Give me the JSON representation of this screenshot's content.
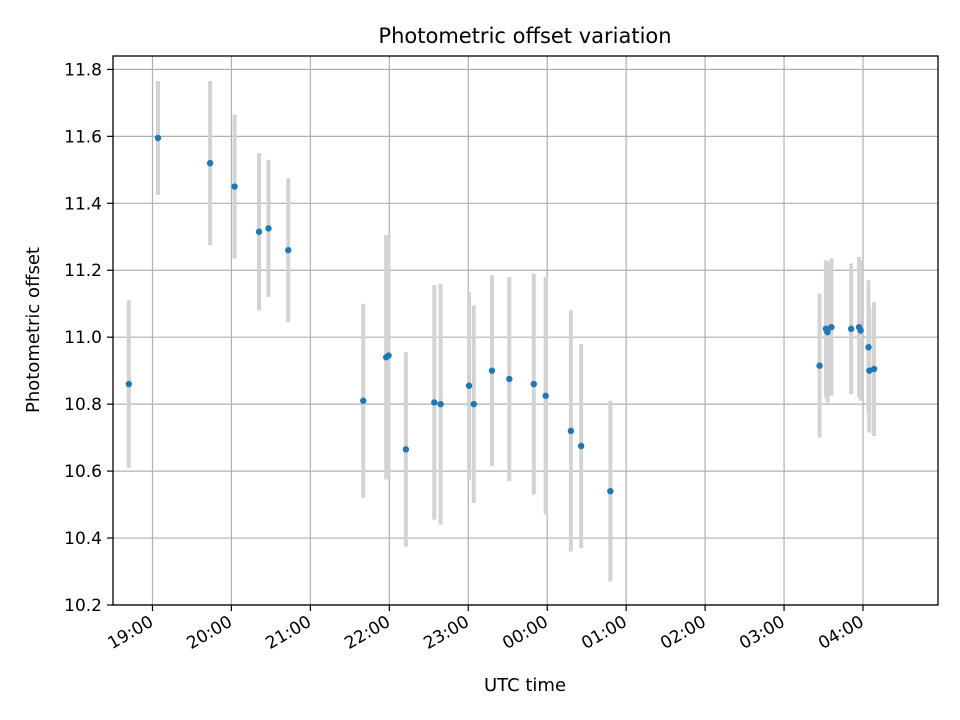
{
  "chart_data": {
    "type": "scatter",
    "title": "Photometric offset variation",
    "xlabel": "UTC time",
    "ylabel": "Photometric offset",
    "x_unit": "UTC hours (times after midnight expressed as 24+)",
    "xlim": [
      18.5,
      28.95
    ],
    "ylim": [
      10.2,
      11.84
    ],
    "x_ticks": [
      {
        "value": 19,
        "label": "19:00"
      },
      {
        "value": 20,
        "label": "20:00"
      },
      {
        "value": 21,
        "label": "21:00"
      },
      {
        "value": 22,
        "label": "22:00"
      },
      {
        "value": 23,
        "label": "23:00"
      },
      {
        "value": 24,
        "label": "00:00"
      },
      {
        "value": 25,
        "label": "01:00"
      },
      {
        "value": 26,
        "label": "02:00"
      },
      {
        "value": 27,
        "label": "03:00"
      },
      {
        "value": 28,
        "label": "04:00"
      }
    ],
    "y_ticks": [
      {
        "value": 10.2,
        "label": "10.2"
      },
      {
        "value": 10.4,
        "label": "10.4"
      },
      {
        "value": 10.6,
        "label": "10.6"
      },
      {
        "value": 10.8,
        "label": "10.8"
      },
      {
        "value": 11.0,
        "label": "11.0"
      },
      {
        "value": 11.2,
        "label": "11.2"
      },
      {
        "value": 11.4,
        "label": "11.4"
      },
      {
        "value": 11.6,
        "label": "11.6"
      },
      {
        "value": 11.8,
        "label": "11.8"
      }
    ],
    "grid": true,
    "colors": {
      "point": "#1f77b4",
      "errorbar": "#d3d3d3",
      "grid": "#b0b0b0"
    },
    "points": [
      {
        "x": 18.7,
        "y": 10.86,
        "yerr": 0.25
      },
      {
        "x": 19.07,
        "y": 11.595,
        "yerr": 0.17
      },
      {
        "x": 19.73,
        "y": 11.52,
        "yerr": 0.245
      },
      {
        "x": 20.04,
        "y": 11.45,
        "yerr": 0.215
      },
      {
        "x": 20.35,
        "y": 11.315,
        "yerr": 0.235
      },
      {
        "x": 20.47,
        "y": 11.325,
        "yerr": 0.205
      },
      {
        "x": 20.72,
        "y": 11.26,
        "yerr": 0.215
      },
      {
        "x": 21.67,
        "y": 10.81,
        "yerr": 0.29
      },
      {
        "x": 21.96,
        "y": 10.94,
        "yerr": 0.365
      },
      {
        "x": 21.99,
        "y": 10.945,
        "yerr": 0.36
      },
      {
        "x": 22.21,
        "y": 10.665,
        "yerr": 0.29
      },
      {
        "x": 22.57,
        "y": 10.805,
        "yerr": 0.35
      },
      {
        "x": 22.65,
        "y": 10.8,
        "yerr": 0.36
      },
      {
        "x": 23.01,
        "y": 10.855,
        "yerr": 0.28
      },
      {
        "x": 23.07,
        "y": 10.8,
        "yerr": 0.295
      },
      {
        "x": 23.3,
        "y": 10.9,
        "yerr": 0.285
      },
      {
        "x": 23.52,
        "y": 10.875,
        "yerr": 0.305
      },
      {
        "x": 23.83,
        "y": 10.86,
        "yerr": 0.33
      },
      {
        "x": 23.98,
        "y": 10.825,
        "yerr": 0.355
      },
      {
        "x": 24.3,
        "y": 10.72,
        "yerr": 0.36
      },
      {
        "x": 24.43,
        "y": 10.675,
        "yerr": 0.305
      },
      {
        "x": 24.8,
        "y": 10.54,
        "yerr": 0.27
      },
      {
        "x": 27.45,
        "y": 10.915,
        "yerr": 0.215
      },
      {
        "x": 27.53,
        "y": 11.025,
        "yerr": 0.205
      },
      {
        "x": 27.55,
        "y": 11.015,
        "yerr": 0.21
      },
      {
        "x": 27.6,
        "y": 11.03,
        "yerr": 0.205
      },
      {
        "x": 27.85,
        "y": 11.025,
        "yerr": 0.195
      },
      {
        "x": 27.95,
        "y": 11.03,
        "yerr": 0.21
      },
      {
        "x": 27.97,
        "y": 11.02,
        "yerr": 0.21
      },
      {
        "x": 28.07,
        "y": 10.97,
        "yerr": 0.2
      },
      {
        "x": 28.08,
        "y": 10.9,
        "yerr": 0.185
      },
      {
        "x": 28.14,
        "y": 10.905,
        "yerr": 0.2
      }
    ]
  }
}
